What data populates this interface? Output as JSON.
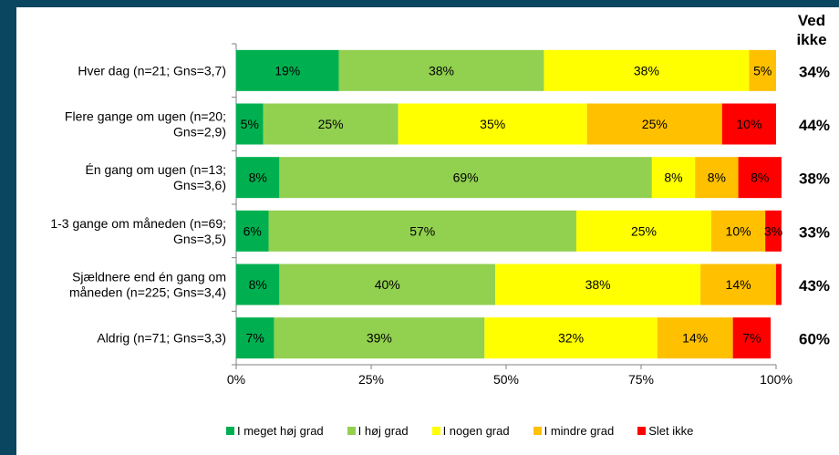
{
  "chart_data": {
    "type": "bar",
    "orientation": "horizontal",
    "stacked": true,
    "categories": [
      [
        "Hver dag (n=21; Gns=3,7)"
      ],
      [
        "Flere gange om ugen (n=20;",
        "Gns=2,9)"
      ],
      [
        "Én gang om ugen (n=13;",
        "Gns=3,6)"
      ],
      [
        "1-3 gange om måneden (n=69;",
        "Gns=3,5)"
      ],
      [
        "Sjældnere end én gang om",
        "måneden (n=225; Gns=3,4)"
      ],
      [
        "Aldrig (n=71; Gns=3,3)"
      ]
    ],
    "series": [
      {
        "name": "I meget høj grad",
        "color": "#00b050",
        "values": [
          19,
          5,
          8,
          6,
          8,
          7
        ]
      },
      {
        "name": "I høj grad",
        "color": "#92d050",
        "values": [
          38,
          25,
          69,
          57,
          40,
          39
        ]
      },
      {
        "name": "I nogen grad",
        "color": "#ffff00",
        "values": [
          38,
          35,
          8,
          25,
          38,
          32
        ]
      },
      {
        "name": "I mindre grad",
        "color": "#ffc000",
        "values": [
          5,
          25,
          8,
          10,
          14,
          14
        ]
      },
      {
        "name": "Slet ikke",
        "color": "#ff0000",
        "values": [
          0,
          10,
          8,
          3,
          1,
          7
        ]
      }
    ],
    "data_labels": [
      [
        "19%",
        "38%",
        "38%",
        "5%",
        ""
      ],
      [
        "5%",
        "25%",
        "35%",
        "25%",
        "10%"
      ],
      [
        "8%",
        "69%",
        "8%",
        "8%",
        "8%"
      ],
      [
        "6%",
        "57%",
        "25%",
        "10%",
        "3%"
      ],
      [
        "8%",
        "40%",
        "38%",
        "14%",
        ""
      ],
      [
        "7%",
        "39%",
        "32%",
        "14%",
        "7%"
      ]
    ],
    "side_column_title": [
      "Ved",
      "ikke"
    ],
    "side_column_values": [
      "34%",
      "44%",
      "38%",
      "33%",
      "43%",
      "60%"
    ],
    "xlim": [
      0,
      100
    ],
    "xticks": [
      "0%",
      "25%",
      "50%",
      "75%",
      "100%"
    ],
    "legend_position": "bottom",
    "grid": false
  }
}
